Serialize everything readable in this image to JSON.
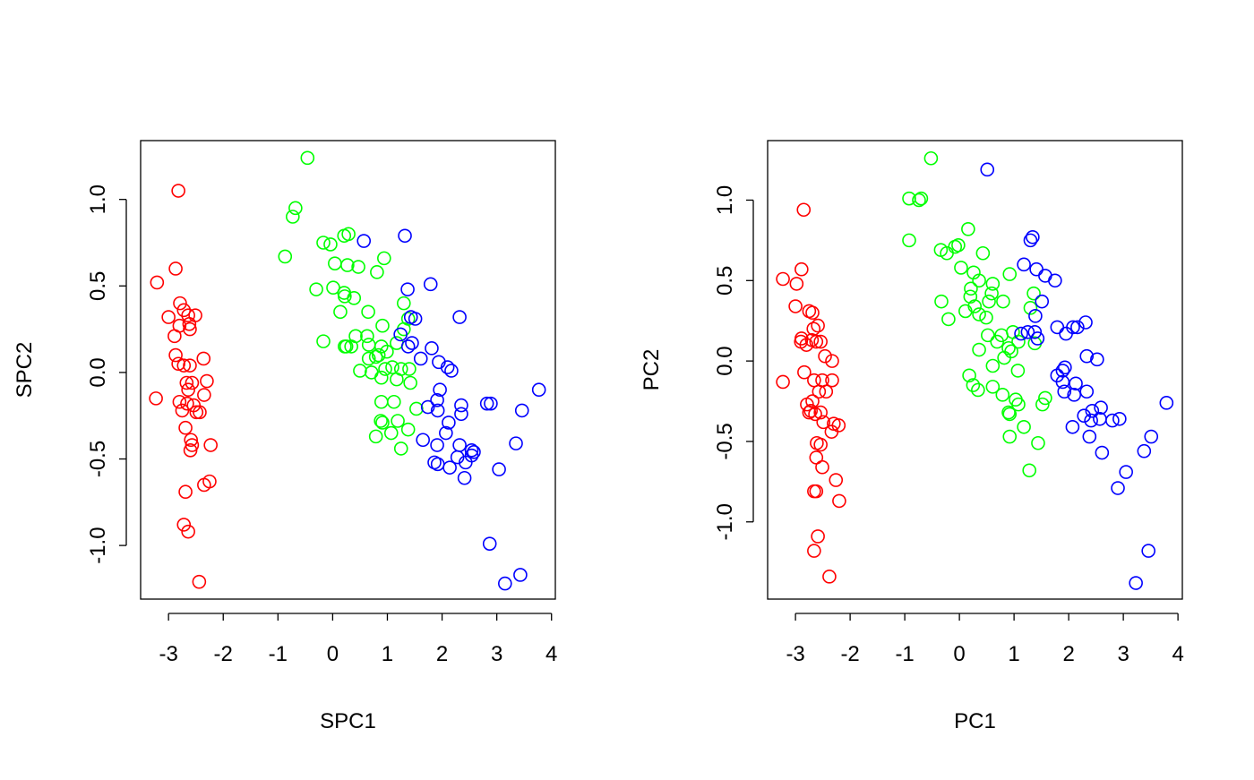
{
  "chart_data": [
    {
      "type": "scatter",
      "xlabel": "SPC1",
      "ylabel": "SPC2",
      "xlim": [
        -3.51,
        4.07
      ],
      "ylim": [
        -1.31,
        1.34
      ],
      "xticks": [
        -3,
        -2,
        -1,
        0,
        1,
        2,
        3,
        4
      ],
      "yticks": [
        {
          "value": -1,
          "label": "-1.0"
        },
        -0.5,
        {
          "value": 0,
          "label": "0.0"
        },
        0.5,
        {
          "value": 1,
          "label": "1.0"
        }
      ],
      "series": [
        {
          "color": "#ff0000",
          "x": [
            -2.82,
            -3.21,
            -2.87,
            -3.0,
            -2.79,
            -2.72,
            -2.64,
            -2.51,
            -2.89,
            -2.8,
            -2.62,
            -2.61,
            -2.87,
            -2.82,
            -2.72,
            -2.61,
            -2.36,
            -3.23,
            -2.8,
            -2.66,
            -2.75,
            -2.54,
            -2.49,
            -2.64,
            -2.67,
            -2.57,
            -2.3,
            -2.35,
            -2.43,
            -2.69,
            -2.59,
            -2.57,
            -2.6,
            -2.23,
            -2.35,
            -2.25,
            -2.69,
            -2.72,
            -2.64,
            -2.44
          ],
          "values": [
            1.05,
            0.52,
            0.6,
            0.32,
            0.4,
            0.36,
            0.33,
            0.33,
            0.21,
            0.27,
            0.28,
            0.25,
            0.1,
            0.05,
            0.04,
            0.04,
            0.08,
            -0.15,
            -0.17,
            -0.18,
            -0.22,
            -0.19,
            -0.23,
            -0.1,
            -0.06,
            -0.06,
            -0.05,
            -0.13,
            -0.23,
            -0.32,
            -0.39,
            -0.42,
            -0.45,
            -0.42,
            -0.65,
            -0.63,
            -0.69,
            -0.88,
            -0.92,
            -1.21
          ]
        },
        {
          "color": "#00ff00",
          "x": [
            -0.46,
            -0.68,
            -0.73,
            -0.87,
            -0.17,
            -0.04,
            0.21,
            0.29,
            0.04,
            0.27,
            0.47,
            0.81,
            0.94,
            -0.3,
            0.01,
            0.21,
            0.22,
            0.39,
            0.14,
            0.65,
            1.3,
            -0.17,
            0.22,
            0.34,
            0.42,
            0.63,
            0.66,
            0.91,
            0.89,
            0.99,
            1.17,
            1.3,
            1.38,
            0.5,
            0.66,
            0.84,
            0.96,
            1.09,
            1.25,
            1.4,
            0.71,
            0.89,
            0.79,
            0.89,
            1.12,
            1.53,
            0.91,
            0.88,
            1.38,
            0.79,
            1.07,
            1.19,
            1.25,
            1.42,
            1.17,
            0.25
          ],
          "values": [
            1.24,
            0.95,
            0.9,
            0.67,
            0.75,
            0.74,
            0.79,
            0.8,
            0.63,
            0.62,
            0.61,
            0.58,
            0.66,
            0.48,
            0.49,
            0.46,
            0.44,
            0.43,
            0.35,
            0.35,
            0.4,
            0.18,
            0.15,
            0.15,
            0.21,
            0.21,
            0.16,
            0.27,
            0.15,
            0.12,
            0.17,
            0.25,
            0.31,
            0.01,
            0.08,
            0.1,
            0.02,
            0.03,
            0.02,
            0.02,
            0.0,
            -0.03,
            0.09,
            -0.17,
            -0.17,
            -0.21,
            -0.29,
            -0.28,
            -0.33,
            -0.37,
            -0.35,
            -0.28,
            -0.44,
            -0.06,
            -0.04,
            0.15
          ]
        },
        {
          "color": "#0000ff",
          "x": [
            0.57,
            1.32,
            1.37,
            1.43,
            1.51,
            1.45,
            1.38,
            1.24,
            1.61,
            1.81,
            1.79,
            2.32,
            1.94,
            2.1,
            2.17,
            1.96,
            1.91,
            1.74,
            1.92,
            2.35,
            2.35,
            2.12,
            2.82,
            2.89,
            1.65,
            1.91,
            2.07,
            1.86,
            1.92,
            2.32,
            2.14,
            2.28,
            2.43,
            2.54,
            2.54,
            2.41,
            2.58,
            3.04,
            3.35,
            3.46,
            3.77,
            2.87,
            3.15,
            3.43
          ],
          "values": [
            0.76,
            0.79,
            0.48,
            0.32,
            0.31,
            0.17,
            0.15,
            0.22,
            0.08,
            0.14,
            0.51,
            0.32,
            0.06,
            0.03,
            0.01,
            -0.1,
            -0.16,
            -0.2,
            -0.22,
            -0.19,
            -0.24,
            -0.29,
            -0.18,
            -0.18,
            -0.39,
            -0.42,
            -0.35,
            -0.52,
            -0.53,
            -0.42,
            -0.55,
            -0.49,
            -0.52,
            -0.45,
            -0.48,
            -0.61,
            -0.46,
            -0.56,
            -0.41,
            -0.22,
            -0.1,
            -0.99,
            -1.22,
            -1.17
          ]
        }
      ]
    },
    {
      "type": "scatter",
      "xlabel": "PC1",
      "ylabel": "PC2",
      "xlim": [
        -3.51,
        4.08
      ],
      "ylim": [
        -1.48,
        1.37
      ],
      "xticks": [
        -3,
        -2,
        -1,
        0,
        1,
        2,
        3,
        4
      ],
      "yticks": [
        {
          "value": -1,
          "label": "-1.0"
        },
        -0.5,
        {
          "value": 0,
          "label": "0.0"
        },
        0.5,
        {
          "value": 1,
          "label": "1.0"
        }
      ],
      "series": [
        {
          "color": "#ff0000",
          "x": [
            -3.23,
            -2.98,
            -2.89,
            -2.85,
            -3.0,
            -2.75,
            -2.69,
            -2.59,
            -2.67,
            -2.89,
            -2.8,
            -2.9,
            -2.7,
            -2.62,
            -2.54,
            -2.46,
            -2.33,
            -2.84,
            -2.66,
            -2.51,
            -2.33,
            -3.23,
            -2.79,
            -2.69,
            -2.57,
            -2.44,
            -2.75,
            -2.64,
            -2.54,
            -2.49,
            -2.34,
            -2.21,
            -2.3,
            -2.61,
            -2.54,
            -2.62,
            -2.51,
            -2.62,
            -2.66,
            -2.26,
            -2.59,
            -2.2,
            -2.66,
            -2.38,
            -2.72
          ],
          "values": [
            0.51,
            0.48,
            0.57,
            0.94,
            0.34,
            0.31,
            0.3,
            0.22,
            0.2,
            0.14,
            0.1,
            0.12,
            0.13,
            0.12,
            0.12,
            0.03,
            0.0,
            -0.07,
            -0.12,
            -0.12,
            -0.12,
            -0.13,
            -0.27,
            -0.25,
            -0.19,
            -0.19,
            -0.32,
            -0.33,
            -0.32,
            -0.38,
            -0.44,
            -0.4,
            -0.39,
            -0.51,
            -0.52,
            -0.6,
            -0.66,
            -0.81,
            -0.81,
            -0.74,
            -1.09,
            -0.87,
            -1.18,
            -1.34,
            -0.31
          ]
        },
        {
          "color": "#00ff00",
          "x": [
            -0.52,
            -0.92,
            -0.7,
            -0.74,
            -0.92,
            0.16,
            -0.23,
            -0.34,
            -0.08,
            -0.02,
            0.43,
            0.03,
            0.26,
            0.36,
            0.61,
            0.92,
            -0.33,
            0.2,
            0.21,
            0.28,
            0.11,
            0.36,
            0.54,
            0.59,
            0.8,
            -0.2,
            0.49,
            0.77,
            0.98,
            1.08,
            1.36,
            1.3,
            1.38,
            0.52,
            0.95,
            0.9,
            0.82,
            0.36,
            1.07,
            0.61,
            0.18,
            0.61,
            0.79,
            0.25,
            0.34,
            1.03,
            1.08,
            0.9,
            0.92,
            1.52,
            1.57,
            0.92,
            1.44,
            1.18,
            1.28,
            0.69
          ],
          "values": [
            1.26,
            1.01,
            1.01,
            1.0,
            0.75,
            0.82,
            0.67,
            0.69,
            0.71,
            0.72,
            0.67,
            0.58,
            0.55,
            0.5,
            0.48,
            0.54,
            0.37,
            0.4,
            0.45,
            0.34,
            0.31,
            0.29,
            0.37,
            0.42,
            0.37,
            0.26,
            0.27,
            0.16,
            0.18,
            0.12,
            0.42,
            0.33,
            0.11,
            0.16,
            0.06,
            0.08,
            0.02,
            0.07,
            -0.06,
            -0.03,
            -0.09,
            -0.16,
            -0.21,
            -0.15,
            -0.18,
            -0.24,
            -0.27,
            -0.32,
            -0.33,
            -0.27,
            -0.23,
            -0.47,
            -0.51,
            -0.41,
            -0.68,
            0.12
          ]
        },
        {
          "color": "#0000ff",
          "x": [
            0.51,
            1.3,
            1.34,
            1.41,
            1.57,
            1.75,
            1.18,
            1.51,
            1.39,
            1.13,
            1.25,
            1.38,
            1.43,
            1.79,
            1.95,
            2.08,
            2.16,
            2.31,
            2.33,
            2.52,
            1.79,
            1.89,
            1.93,
            1.89,
            2.13,
            1.92,
            2.33,
            2.1,
            2.28,
            2.43,
            2.59,
            2.41,
            2.57,
            2.8,
            2.93,
            2.38,
            2.61,
            2.07,
            3.05,
            2.9,
            3.51,
            3.38,
            3.46,
            3.79,
            3.23
          ],
          "values": [
            1.19,
            0.75,
            0.77,
            0.57,
            0.53,
            0.5,
            0.6,
            0.37,
            0.28,
            0.17,
            0.18,
            0.18,
            0.14,
            0.21,
            0.17,
            0.21,
            0.21,
            0.24,
            0.03,
            0.01,
            -0.09,
            -0.06,
            -0.04,
            -0.13,
            -0.14,
            -0.19,
            -0.19,
            -0.21,
            -0.34,
            -0.31,
            -0.29,
            -0.37,
            -0.36,
            -0.37,
            -0.36,
            -0.47,
            -0.57,
            -0.41,
            -0.69,
            -0.79,
            -0.47,
            -0.56,
            -1.18,
            -0.26,
            -1.38
          ]
        }
      ]
    }
  ]
}
